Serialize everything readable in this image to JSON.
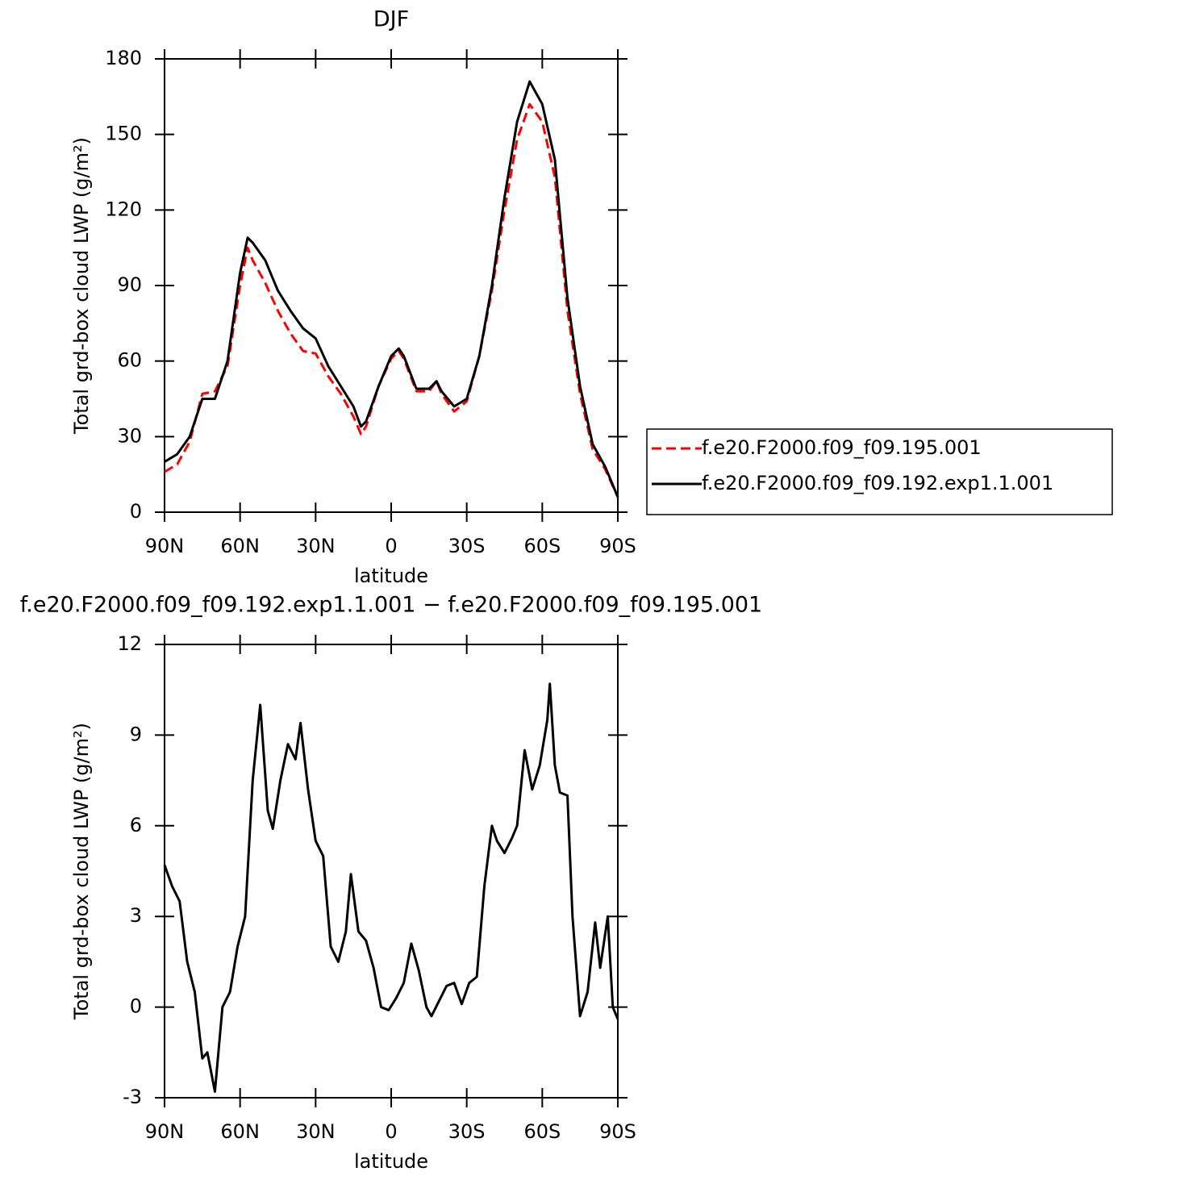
{
  "chart_data": [
    {
      "type": "line",
      "title": "DJF",
      "x_label": "latitude",
      "y_label": "Total grd-box cloud LWP (g/m²)",
      "xlim": [
        90,
        -90
      ],
      "xticks": [
        {
          "value": 90,
          "label": "90N"
        },
        {
          "value": 60,
          "label": "60N"
        },
        {
          "value": 30,
          "label": "30N"
        },
        0,
        {
          "value": -30,
          "label": "30S"
        },
        {
          "value": -60,
          "label": "60S"
        },
        {
          "value": -90,
          "label": "90S"
        }
      ],
      "ylim": [
        0,
        180
      ],
      "yticks": [
        0,
        30,
        60,
        90,
        120,
        150,
        180
      ],
      "legend": "right",
      "x": [
        90,
        85,
        80,
        75,
        70,
        65,
        60,
        57,
        55,
        50,
        45,
        40,
        35,
        30,
        25,
        20,
        15,
        12,
        10,
        5,
        0,
        -3,
        -5,
        -10,
        -15,
        -18,
        -20,
        -25,
        -30,
        -35,
        -40,
        -45,
        -50,
        -55,
        -60,
        -65,
        -70,
        -75,
        -80,
        -85,
        -90
      ],
      "series": [
        {
          "name": "f.e20.F2000.f09_f09.195.001",
          "color": "#ff0000",
          "linestyle": "dashed",
          "values": [
            16,
            19,
            28,
            47,
            48,
            58,
            90,
            105,
            100,
            91,
            80,
            71,
            64,
            63,
            54,
            47,
            38,
            31,
            34,
            50,
            61,
            64,
            61,
            48,
            48,
            52,
            47,
            40,
            44,
            62,
            88,
            120,
            148,
            162,
            155,
            133,
            80,
            47,
            25,
            17,
            6
          ]
        },
        {
          "name": "f.e20.F2000.f09_f09.192.exp1.1.001",
          "color": "#000000",
          "linestyle": "solid",
          "values": [
            20,
            23,
            30,
            45,
            45,
            60,
            95,
            109,
            107,
            100,
            88,
            80,
            73,
            69,
            58,
            50,
            42,
            34,
            36,
            50,
            62,
            65,
            62,
            49,
            49,
            52,
            48,
            42,
            45,
            62,
            90,
            125,
            155,
            171,
            162,
            140,
            85,
            50,
            27,
            18,
            6
          ]
        }
      ]
    },
    {
      "type": "line",
      "title": "f.e20.F2000.f09_f09.192.exp1.1.001 − f.e20.F2000.f09_f09.195.001",
      "x_label": "latitude",
      "y_label": "Total grd-box cloud LWP (g/m²)",
      "xlim": [
        90,
        -90
      ],
      "xticks": [
        {
          "value": 90,
          "label": "90N"
        },
        {
          "value": 60,
          "label": "60N"
        },
        {
          "value": 30,
          "label": "30N"
        },
        0,
        {
          "value": -30,
          "label": "30S"
        },
        {
          "value": -60,
          "label": "60S"
        },
        {
          "value": -90,
          "label": "90S"
        }
      ],
      "ylim": [
        -3,
        12
      ],
      "yticks": [
        -3,
        0,
        3,
        6,
        9,
        12
      ],
      "x": [
        90,
        87,
        84,
        81,
        78,
        75,
        73,
        70,
        67,
        64,
        61,
        58,
        55,
        52,
        49,
        47,
        44,
        41,
        38,
        36,
        33,
        30,
        27,
        24,
        21,
        18,
        16,
        13,
        10,
        7,
        4,
        1,
        -2,
        -5,
        -8,
        -11,
        -14,
        -16,
        -19,
        -22,
        -25,
        -28,
        -31,
        -34,
        -37,
        -40,
        -42,
        -45,
        -48,
        -50,
        -53,
        -56,
        -59,
        -62,
        -63,
        -65,
        -67,
        -70,
        -72,
        -75,
        -78,
        -81,
        -83,
        -86,
        -88,
        -90
      ],
      "series": [
        {
          "color": "#000000",
          "linestyle": "solid",
          "values": [
            4.7,
            4.0,
            3.5,
            1.5,
            0.5,
            -1.7,
            -1.5,
            -2.8,
            0,
            0.5,
            2,
            3,
            7.5,
            10,
            6.5,
            5.9,
            7.5,
            8.7,
            8.2,
            9.4,
            7.2,
            5.5,
            5,
            2,
            1.5,
            2.5,
            4.4,
            2.5,
            2.2,
            1.3,
            0,
            -0.1,
            0.3,
            0.8,
            2.1,
            1.2,
            0,
            -0.3,
            0.2,
            0.7,
            0.8,
            0.1,
            0.8,
            1,
            4,
            6,
            5.5,
            5.1,
            5.6,
            6,
            8.5,
            7.2,
            8,
            9.5,
            10.7,
            8,
            7.1,
            7,
            3,
            -0.3,
            0.5,
            2.8,
            1.3,
            3,
            0,
            -0.4
          ]
        }
      ]
    }
  ]
}
